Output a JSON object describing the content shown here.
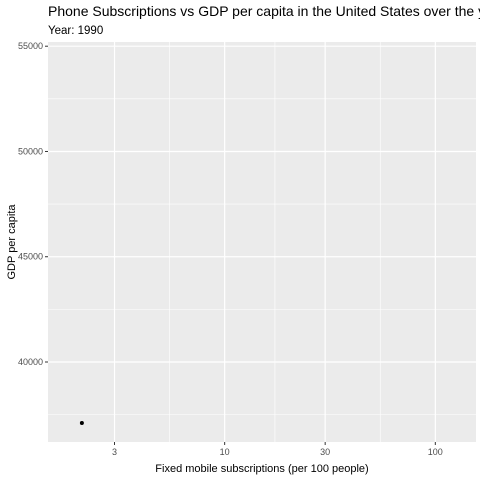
{
  "chart_data": {
    "type": "scatter",
    "title": "Phone Subscriptions vs GDP per capita in the United States over the years",
    "subtitle": "Year: 1990",
    "xlabel": "Fixed mobile subscriptions (per 100 people)",
    "ylabel": "GDP per capita",
    "x_scale": "log10",
    "xlim": [
      1.45,
      156
    ],
    "ylim": [
      36200,
      55200
    ],
    "x_ticks": [
      3,
      10,
      30,
      100
    ],
    "x_tick_labels": [
      "3",
      "10",
      "30",
      "100"
    ],
    "y_ticks": [
      40000,
      45000,
      50000,
      55000
    ],
    "y_tick_labels": [
      "40000",
      "45000",
      "50000",
      "55000"
    ],
    "grid": true,
    "panel_background": "#ebebeb",
    "grid_color": "#ffffff",
    "point_color": "#000000",
    "points": [
      {
        "x": 2.1,
        "y": 37100
      }
    ]
  }
}
